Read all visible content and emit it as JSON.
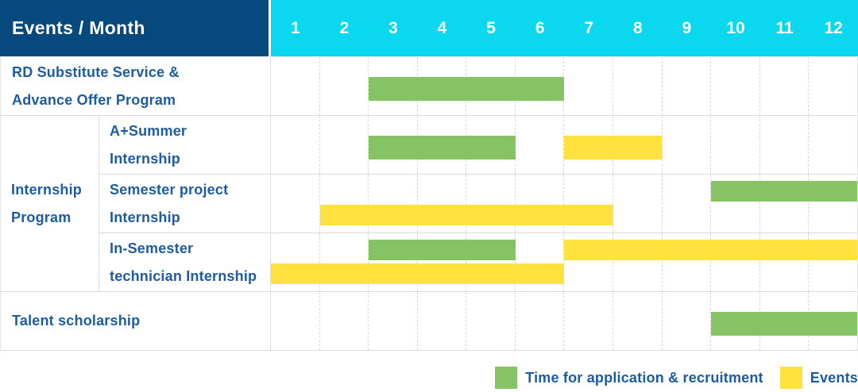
{
  "header": {
    "label": "Events / Month",
    "months": [
      "1",
      "2",
      "3",
      "4",
      "5",
      "6",
      "7",
      "8",
      "9",
      "10",
      "11",
      "12"
    ]
  },
  "legend": [
    {
      "key": "green",
      "label": "Time for application & recruitment"
    },
    {
      "key": "yellow",
      "label": "Events"
    }
  ],
  "colors": {
    "header_navy": "#06497d",
    "header_cyan": "#0bd8ee",
    "bar_green": "#86c365",
    "bar_yellow": "#ffe23d",
    "label_blue": "#1b5ca3"
  },
  "chart_data": {
    "type": "table",
    "subtype": "gantt",
    "title": "Events / Month",
    "x_categories": [
      1,
      2,
      3,
      4,
      5,
      6,
      7,
      8,
      9,
      10,
      11,
      12
    ],
    "xlabel": "Month",
    "grid": true,
    "legend_position": "bottom-right",
    "series_legend": [
      "Time for application & recruitment",
      "Events"
    ],
    "rows": [
      {
        "id": "rd-substitute-service",
        "group": null,
        "label": "RD Substitute Service & Advance Offer Program",
        "label_lines": [
          "RD Substitute Service &",
          "Advance Offer Program"
        ],
        "bars": [
          {
            "series": "Time for application & recruitment",
            "color": "green",
            "start_month": 3,
            "end_month": 6,
            "lane": "center"
          }
        ]
      },
      {
        "id": "a-plus-summer-internship",
        "group": "Internship Program",
        "group_lines": [
          "Internship",
          "Program"
        ],
        "label": "A+Summer Internship",
        "label_lines": [
          "A+Summer",
          "Internship"
        ],
        "bars": [
          {
            "series": "Time for application & recruitment",
            "color": "green",
            "start_month": 3,
            "end_month": 5,
            "lane": "center"
          },
          {
            "series": "Events",
            "color": "yellow",
            "start_month": 7,
            "end_month": 8,
            "lane": "center"
          }
        ]
      },
      {
        "id": "semester-project-internship",
        "group": "Internship Program",
        "label": "Semester project Internship",
        "label_lines": [
          "Semester project",
          "Internship"
        ],
        "bars": [
          {
            "series": "Time for application & recruitment",
            "color": "green",
            "start_month": 10,
            "end_month": 12,
            "lane": "top"
          },
          {
            "series": "Events",
            "color": "yellow",
            "start_month": 2,
            "end_month": 7,
            "lane": "bottom"
          }
        ]
      },
      {
        "id": "in-semester-technician-internship",
        "group": "Internship Program",
        "label": "In-Semester technician Internship",
        "label_lines": [
          "In-Semester",
          "technician Internship"
        ],
        "bars": [
          {
            "series": "Time for application & recruitment",
            "color": "green",
            "start_month": 3,
            "end_month": 5,
            "lane": "top"
          },
          {
            "series": "Events",
            "color": "yellow",
            "start_month": 7,
            "end_month": 12,
            "lane": "top"
          },
          {
            "series": "Events",
            "color": "yellow",
            "start_month": 1,
            "end_month": 6,
            "lane": "bottom"
          }
        ]
      },
      {
        "id": "talent-scholarship",
        "group": null,
        "label": "Talent scholarship",
        "label_lines": [
          "Talent scholarship"
        ],
        "bars": [
          {
            "series": "Time for application & recruitment",
            "color": "green",
            "start_month": 10,
            "end_month": 12,
            "lane": "center"
          }
        ]
      }
    ]
  }
}
